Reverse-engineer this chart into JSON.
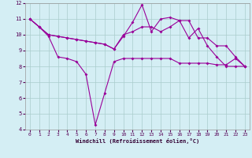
{
  "xlabel": "Windchill (Refroidissement éolien,°C)",
  "x": [
    0,
    1,
    2,
    3,
    4,
    5,
    6,
    7,
    8,
    9,
    10,
    11,
    12,
    13,
    14,
    15,
    16,
    17,
    18,
    19,
    20,
    21,
    22,
    23
  ],
  "series1": [
    11.0,
    10.5,
    10.0,
    9.9,
    9.8,
    9.7,
    9.6,
    9.5,
    9.4,
    9.1,
    9.9,
    10.8,
    11.9,
    10.2,
    11.0,
    11.1,
    10.9,
    9.8,
    10.4,
    9.3,
    8.6,
    8.0,
    8.0,
    8.0
  ],
  "series2": [
    11.0,
    10.5,
    10.0,
    9.9,
    9.8,
    9.7,
    9.6,
    9.5,
    9.4,
    9.1,
    10.0,
    10.2,
    10.5,
    10.5,
    10.2,
    10.5,
    10.9,
    10.9,
    9.8,
    9.8,
    9.3,
    9.3,
    8.6,
    8.0
  ],
  "series3": [
    11.0,
    10.5,
    9.9,
    8.6,
    8.5,
    8.3,
    7.5,
    4.3,
    6.3,
    8.3,
    8.5,
    8.5,
    8.5,
    8.5,
    8.5,
    8.5,
    8.2,
    8.2,
    8.2,
    8.2,
    8.1,
    8.1,
    8.5,
    8.0
  ],
  "line_color": "#990099",
  "bg_color": "#d4eef4",
  "grid_color": "#aacccc",
  "ylim": [
    4,
    12
  ],
  "yticks": [
    4,
    5,
    6,
    7,
    8,
    9,
    10,
    11,
    12
  ],
  "xticks": [
    0,
    1,
    2,
    3,
    4,
    5,
    6,
    7,
    8,
    9,
    10,
    11,
    12,
    13,
    14,
    15,
    16,
    17,
    18,
    19,
    20,
    21,
    22,
    23
  ],
  "tick_color": "#550055",
  "xlabel_color": "#330033",
  "line_width": 0.8,
  "markersize": 2.0
}
